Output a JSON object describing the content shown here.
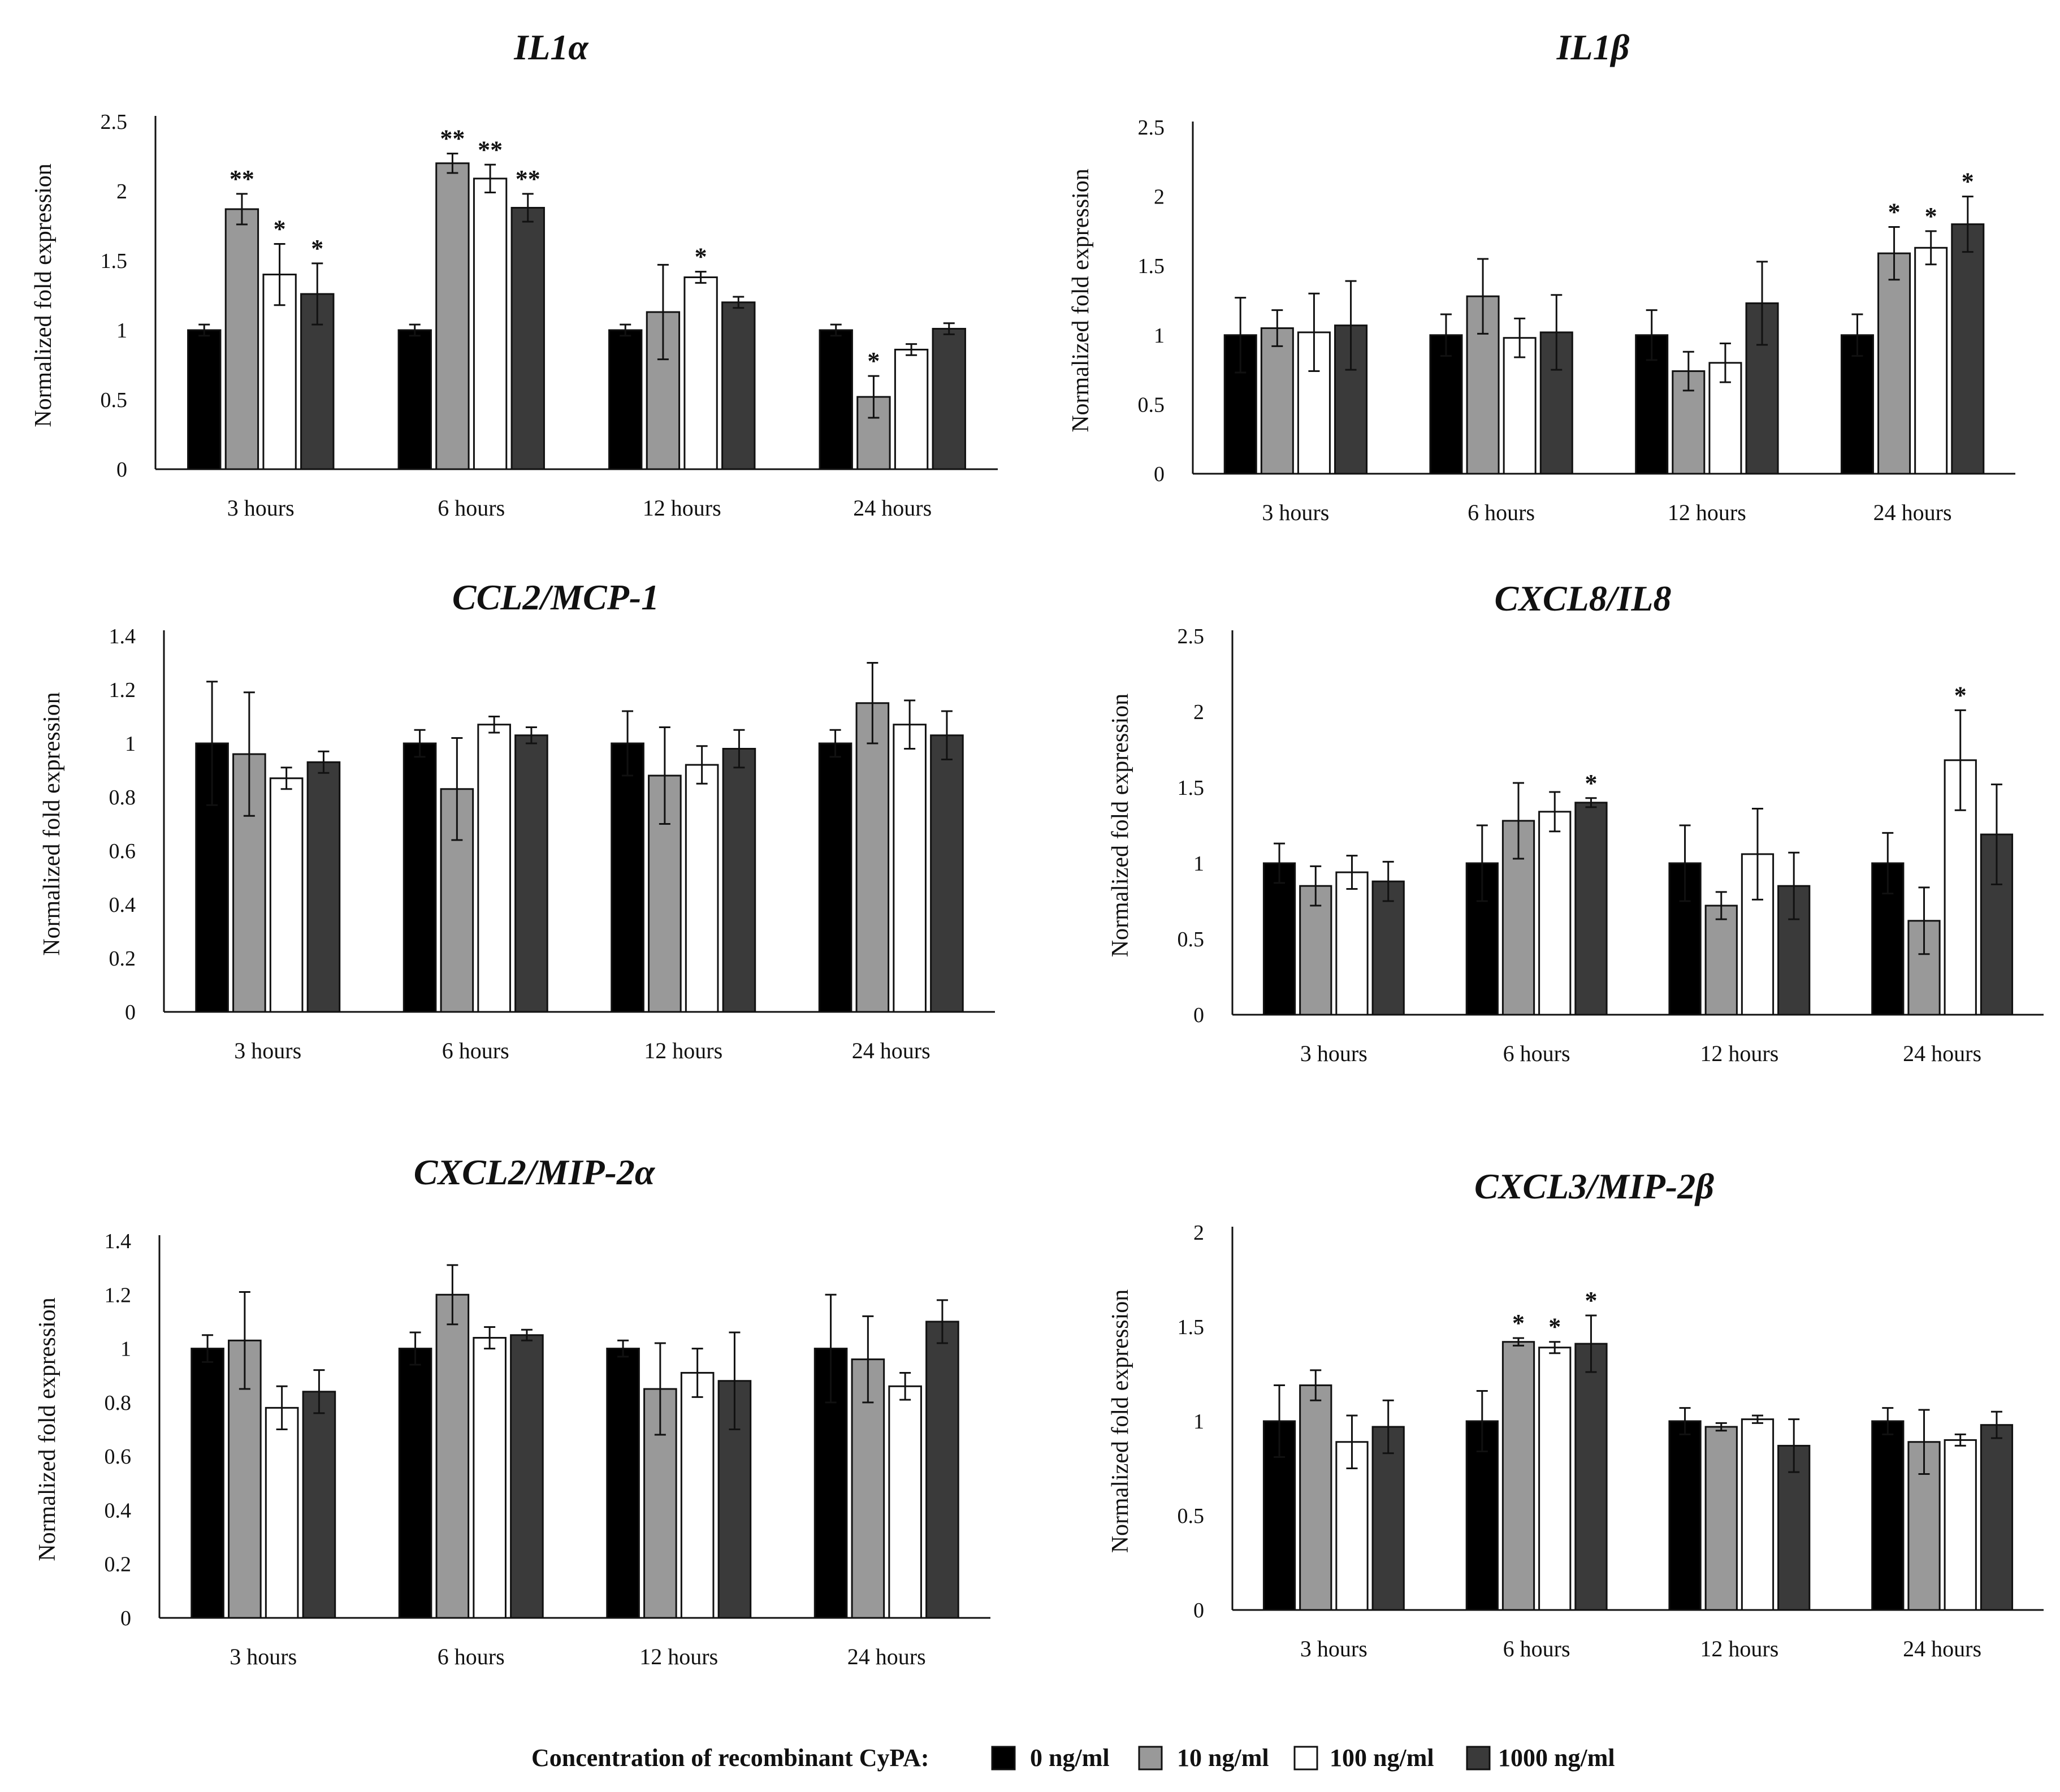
{
  "chart_data": [
    {
      "type": "bar",
      "title": "IL1α",
      "ylabel": "Normalized fold expression",
      "xlabel": "",
      "ylim": [
        0,
        2.5
      ],
      "yticks": [
        "0",
        "0.5",
        "1",
        "1.5",
        "2",
        "2.5"
      ],
      "categories": [
        "3 hours",
        "6 hours",
        "12 hours",
        "24 hours"
      ],
      "series": [
        {
          "name": "0 ng/ml",
          "values": [
            1.0,
            1.0,
            1.0,
            1.0
          ],
          "errors": [
            0.04,
            0.04,
            0.04,
            0.04
          ],
          "marks": [
            "",
            "",
            "",
            ""
          ]
        },
        {
          "name": "10 ng/ml",
          "values": [
            1.87,
            2.2,
            1.13,
            0.52
          ],
          "errors": [
            0.11,
            0.07,
            0.34,
            0.15
          ],
          "marks": [
            "**",
            "**",
            "",
            "*"
          ]
        },
        {
          "name": "100 ng/ml",
          "values": [
            1.4,
            2.09,
            1.38,
            0.86
          ],
          "errors": [
            0.22,
            0.1,
            0.04,
            0.04
          ],
          "marks": [
            "*",
            "**",
            "*",
            ""
          ]
        },
        {
          "name": "1000 ng/ml",
          "values": [
            1.26,
            1.88,
            1.2,
            1.01
          ],
          "errors": [
            0.22,
            0.1,
            0.04,
            0.04
          ],
          "marks": [
            "*",
            "**",
            "",
            ""
          ]
        }
      ]
    },
    {
      "type": "bar",
      "title": "IL1β",
      "ylabel": "Normalized fold expression",
      "xlabel": "",
      "ylim": [
        0,
        2.5
      ],
      "yticks": [
        "0",
        "0.5",
        "1",
        "1.5",
        "2",
        "2.5"
      ],
      "categories": [
        "3 hours",
        "6 hours",
        "12 hours",
        "24 hours"
      ],
      "series": [
        {
          "name": "0 ng/ml",
          "values": [
            1.0,
            1.0,
            1.0,
            1.0
          ],
          "errors": [
            0.27,
            0.15,
            0.18,
            0.15
          ],
          "marks": [
            "",
            "",
            "",
            ""
          ]
        },
        {
          "name": "10 ng/ml",
          "values": [
            1.05,
            1.28,
            0.74,
            1.59
          ],
          "errors": [
            0.13,
            0.27,
            0.14,
            0.19
          ],
          "marks": [
            "",
            "",
            "",
            "*"
          ]
        },
        {
          "name": "100 ng/ml",
          "values": [
            1.02,
            0.98,
            0.8,
            1.63
          ],
          "errors": [
            0.28,
            0.14,
            0.14,
            0.12
          ],
          "marks": [
            "",
            "",
            "",
            "*"
          ]
        },
        {
          "name": "1000 ng/ml",
          "values": [
            1.07,
            1.02,
            1.23,
            1.8
          ],
          "errors": [
            0.32,
            0.27,
            0.3,
            0.2
          ],
          "marks": [
            "",
            "",
            "",
            "*"
          ]
        }
      ]
    },
    {
      "type": "bar",
      "title": "CCL2/MCP-1",
      "ylabel": "Normalized fold expression",
      "xlabel": "",
      "ylim": [
        0,
        1.4
      ],
      "yticks": [
        "0",
        "0.2",
        "0.4",
        "0.6",
        "0.8",
        "1",
        "1.2",
        "1.4"
      ],
      "categories": [
        "3 hours",
        "6 hours",
        "12 hours",
        "24 hours"
      ],
      "series": [
        {
          "name": "0 ng/ml",
          "values": [
            1.0,
            1.0,
            1.0,
            1.0
          ],
          "errors": [
            0.23,
            0.05,
            0.12,
            0.05
          ],
          "marks": [
            "",
            "",
            "",
            ""
          ]
        },
        {
          "name": "10 ng/ml",
          "values": [
            0.96,
            0.83,
            0.88,
            1.15
          ],
          "errors": [
            0.23,
            0.19,
            0.18,
            0.15
          ],
          "marks": [
            "",
            "",
            "",
            ""
          ]
        },
        {
          "name": "100 ng/ml",
          "values": [
            0.87,
            1.07,
            0.92,
            1.07
          ],
          "errors": [
            0.04,
            0.03,
            0.07,
            0.09
          ],
          "marks": [
            "",
            "",
            "",
            ""
          ]
        },
        {
          "name": "1000 ng/ml",
          "values": [
            0.93,
            1.03,
            0.98,
            1.03
          ],
          "errors": [
            0.04,
            0.03,
            0.07,
            0.09
          ],
          "marks": [
            "",
            "",
            "",
            ""
          ]
        }
      ]
    },
    {
      "type": "bar",
      "title": "CXCL8/IL8",
      "ylabel": "Normalized fold expression",
      "xlabel": "",
      "ylim": [
        0,
        2.5
      ],
      "yticks": [
        "0",
        "0.5",
        "1",
        "1.5",
        "2",
        "2.5"
      ],
      "categories": [
        "3 hours",
        "6 hours",
        "12 hours",
        "24 hours"
      ],
      "series": [
        {
          "name": "0 ng/ml",
          "values": [
            1.0,
            1.0,
            1.0,
            1.0
          ],
          "errors": [
            0.13,
            0.25,
            0.25,
            0.2
          ],
          "marks": [
            "",
            "",
            "",
            ""
          ]
        },
        {
          "name": "10 ng/ml",
          "values": [
            0.85,
            1.28,
            0.72,
            0.62
          ],
          "errors": [
            0.13,
            0.25,
            0.09,
            0.22
          ],
          "marks": [
            "",
            "",
            "",
            ""
          ]
        },
        {
          "name": "100 ng/ml",
          "values": [
            0.94,
            1.34,
            1.06,
            1.68
          ],
          "errors": [
            0.11,
            0.13,
            0.3,
            0.33
          ],
          "marks": [
            "",
            "",
            "",
            "*"
          ]
        },
        {
          "name": "1000 ng/ml",
          "values": [
            0.88,
            1.4,
            0.85,
            1.19
          ],
          "errors": [
            0.13,
            0.03,
            0.22,
            0.33
          ],
          "marks": [
            "",
            "*",
            "",
            ""
          ]
        }
      ]
    },
    {
      "type": "bar",
      "title": "CXCL2/MIP-2α",
      "ylabel": "Normalized fold expression",
      "xlabel": "",
      "ylim": [
        0,
        1.4
      ],
      "yticks": [
        "0",
        "0.2",
        "0.4",
        "0.6",
        "0.8",
        "1",
        "1.2",
        "1.4"
      ],
      "categories": [
        "3 hours",
        "6 hours",
        "12 hours",
        "24 hours"
      ],
      "series": [
        {
          "name": "0 ng/ml",
          "values": [
            1.0,
            1.0,
            1.0,
            1.0
          ],
          "errors": [
            0.05,
            0.06,
            0.03,
            0.2
          ],
          "marks": [
            "",
            "",
            "",
            ""
          ]
        },
        {
          "name": "10 ng/ml",
          "values": [
            1.03,
            1.2,
            0.85,
            0.96
          ],
          "errors": [
            0.18,
            0.11,
            0.17,
            0.16
          ],
          "marks": [
            "",
            "",
            "",
            ""
          ]
        },
        {
          "name": "100 ng/ml",
          "values": [
            0.78,
            1.04,
            0.91,
            0.86
          ],
          "errors": [
            0.08,
            0.04,
            0.09,
            0.05
          ],
          "marks": [
            "",
            "",
            "",
            ""
          ]
        },
        {
          "name": "1000 ng/ml",
          "values": [
            0.84,
            1.05,
            0.88,
            1.1
          ],
          "errors": [
            0.08,
            0.02,
            0.18,
            0.08
          ],
          "marks": [
            "",
            "",
            "",
            ""
          ]
        }
      ]
    },
    {
      "type": "bar",
      "title": "CXCL3/MIP-2β",
      "ylabel": "Normalized fold expression",
      "xlabel": "",
      "ylim": [
        0,
        2
      ],
      "yticks": [
        "0",
        "0.5",
        "1",
        "1.5",
        "2"
      ],
      "categories": [
        "3 hours",
        "6 hours",
        "12 hours",
        "24 hours"
      ],
      "series": [
        {
          "name": "0 ng/ml",
          "values": [
            1.0,
            1.0,
            1.0,
            1.0
          ],
          "errors": [
            0.19,
            0.16,
            0.07,
            0.07
          ],
          "marks": [
            "",
            "",
            "",
            ""
          ]
        },
        {
          "name": "10 ng/ml",
          "values": [
            1.19,
            1.42,
            0.97,
            0.89
          ],
          "errors": [
            0.08,
            0.02,
            0.02,
            0.17
          ],
          "marks": [
            "",
            "*",
            "",
            ""
          ]
        },
        {
          "name": "100 ng/ml",
          "values": [
            0.89,
            1.39,
            1.01,
            0.9
          ],
          "errors": [
            0.14,
            0.03,
            0.02,
            0.03
          ],
          "marks": [
            "",
            "*",
            "",
            ""
          ]
        },
        {
          "name": "1000 ng/ml",
          "values": [
            0.97,
            1.41,
            0.87,
            0.98
          ],
          "errors": [
            0.14,
            0.15,
            0.14,
            0.07
          ],
          "marks": [
            "",
            "*",
            "",
            ""
          ]
        }
      ]
    }
  ],
  "legend": {
    "title": "Concentration of recombinant CyPA:",
    "items": [
      {
        "label": "0 ng/ml",
        "color": "#000000"
      },
      {
        "label": "10 ng/ml",
        "color": "#999999"
      },
      {
        "label": "100 ng/ml",
        "color": "#ffffff"
      },
      {
        "label": "1000 ng/ml",
        "color": "#3a3a3a"
      }
    ]
  },
  "colors": {
    "ink": "#111111",
    "bar_0": "#000000",
    "bar_10": "#999999",
    "bar_100": "#ffffff",
    "bar_1000": "#3a3a3a"
  }
}
